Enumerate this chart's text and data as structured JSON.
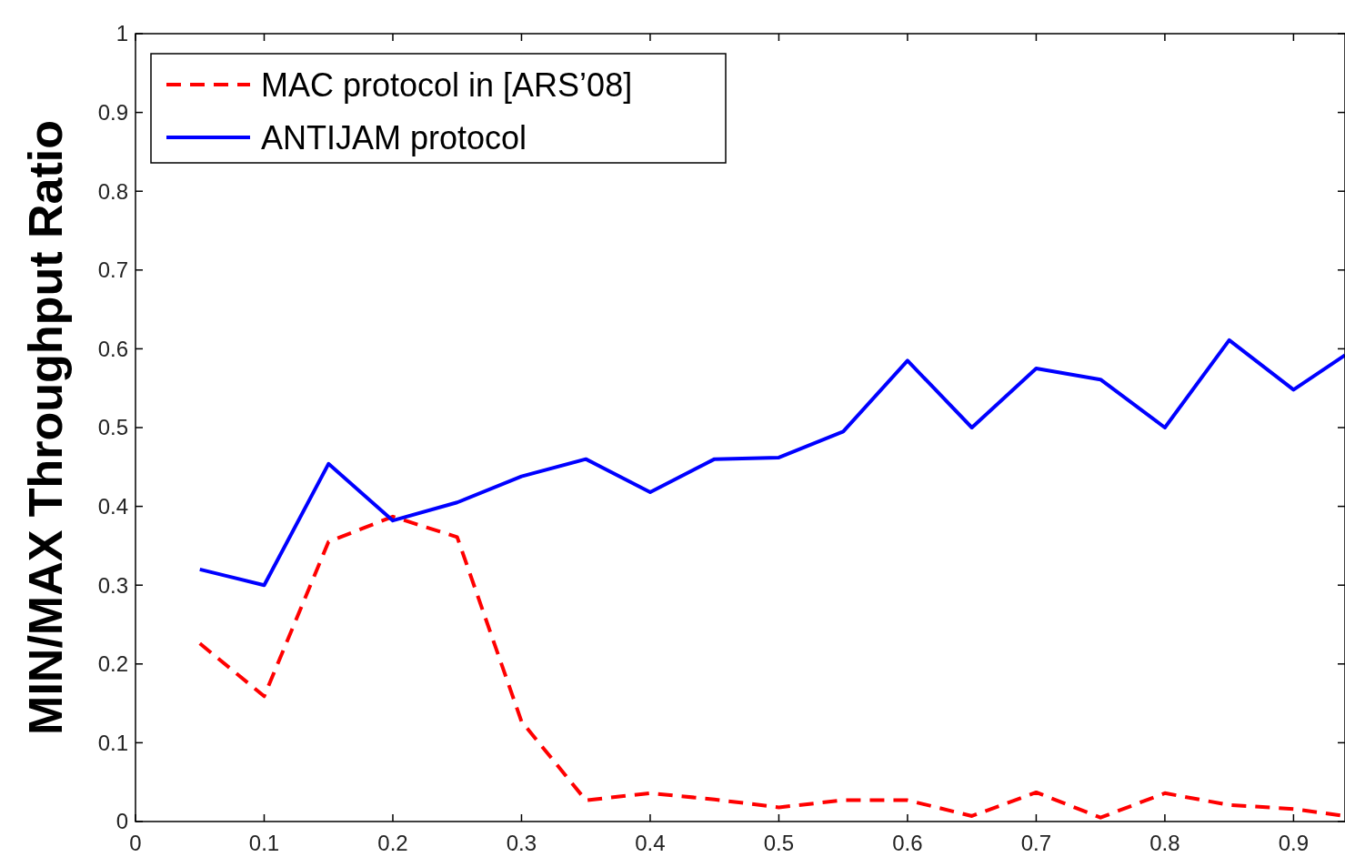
{
  "chart_data": {
    "type": "line",
    "ylabel": "MIN/MAX Throughput Ratio",
    "x": [
      0.05,
      0.1,
      0.15,
      0.2,
      0.25,
      0.3,
      0.35,
      0.4,
      0.45,
      0.5,
      0.55,
      0.6,
      0.65,
      0.7,
      0.75,
      0.8,
      0.85,
      0.9,
      0.94
    ],
    "series": [
      {
        "name": "MAC protocol in [ARS’08]",
        "color": "#ff0000",
        "line_style": "dashed",
        "values": [
          0.226,
          0.159,
          0.355,
          0.387,
          0.361,
          0.127,
          0.027,
          0.036,
          0.028,
          0.018,
          0.027,
          0.027,
          0.007,
          0.037,
          0.005,
          0.036,
          0.021,
          0.016,
          0.007
        ]
      },
      {
        "name": "ANTIJAM protocol",
        "color": "#0000ff",
        "line_style": "solid",
        "values": [
          0.32,
          0.3,
          0.454,
          0.382,
          0.405,
          0.438,
          0.46,
          0.418,
          0.46,
          0.462,
          0.495,
          0.585,
          0.5,
          0.575,
          0.561,
          0.5,
          0.611,
          0.548,
          0.592
        ]
      }
    ],
    "xlim": [
      0,
      0.94
    ],
    "ylim": [
      0,
      1
    ],
    "xticks": [
      0,
      0.1,
      0.2,
      0.3,
      0.4,
      0.5,
      0.6,
      0.7,
      0.8,
      0.9
    ],
    "yticks": [
      0,
      0.1,
      0.2,
      0.3,
      0.4,
      0.5,
      0.6,
      0.7,
      0.8,
      0.9,
      1
    ],
    "legend": "top left"
  }
}
